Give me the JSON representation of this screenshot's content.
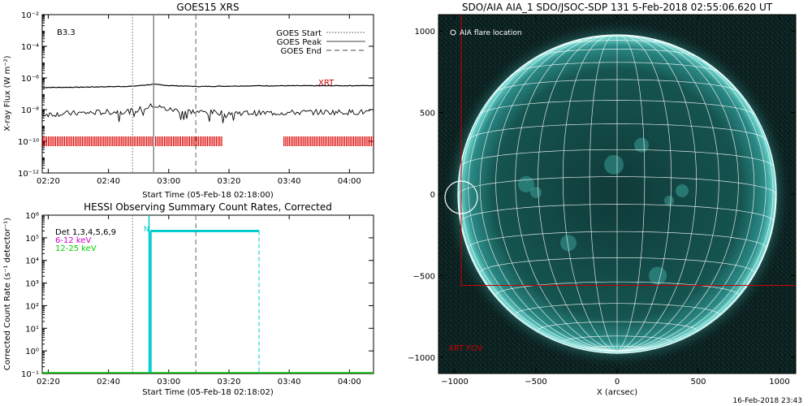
{
  "chart_data": [
    {
      "type": "line",
      "title": "GOES15 XRS",
      "xlabel": "Start Time (05-Feb-18 02:18:00)",
      "ylabel": "X-ray Flux (W m⁻²)",
      "yscale": "log",
      "ylim": [
        1e-12,
        0.01
      ],
      "x_ticks": [
        "02:20",
        "02:40",
        "03:00",
        "03:20",
        "03:40",
        "04:00"
      ],
      "y_ticks": [
        "10⁻¹²",
        "10⁻¹⁰",
        "10⁻⁸",
        "10⁻⁶",
        "10⁻⁴",
        "10⁻²"
      ],
      "annotation": "B3.3",
      "legend": [
        "GOES Start",
        "GOES Peak",
        "GOES End"
      ],
      "legend_position": "top-right",
      "xrt_label": "XRT",
      "markers": {
        "start": "02:48",
        "peak": "02:55",
        "end": "03:09"
      },
      "series": [
        {
          "name": "",
          "x": [
            "02:18",
            "02:30",
            "02:40",
            "02:48",
            "02:55",
            "03:00",
            "03:10",
            "03:30",
            "03:50",
            "04:08"
          ],
          "values": [
            2.5e-07,
            2.6e-07,
            2.8e-07,
            3e-07,
            4e-07,
            3.3e-07,
            2.9e-07,
            3.2e-07,
            3.2e-07,
            3.3e-07
          ]
        },
        {
          "name": "",
          "x": [
            "02:18",
            "02:30",
            "02:40",
            "02:48",
            "02:55",
            "03:00",
            "03:10",
            "03:30",
            "03:50",
            "04:08"
          ],
          "values": [
            5e-09,
            6e-09,
            7e-09,
            8e-09,
            1.8e-08,
            1e-08,
            7e-09,
            6e-09,
            7e-09,
            7e-09
          ]
        }
      ],
      "xrt_coverage": [
        [
          "02:18",
          "03:18"
        ],
        [
          "03:38",
          "04:08"
        ]
      ]
    },
    {
      "type": "line",
      "title": "HESSI Observing Summary Count Rates, Corrected",
      "xlabel": "Start Time (05-Feb-18 02:18:02)",
      "ylabel": "Corrected Count Rate (s⁻¹ detector⁻¹)",
      "yscale": "log",
      "ylim": [
        0.1,
        1000000.0
      ],
      "x_ticks": [
        "02:20",
        "02:40",
        "03:00",
        "03:20",
        "03:40",
        "04:00"
      ],
      "y_ticks": [
        "10⁻¹",
        "10⁰",
        "10¹",
        "10²",
        "10³",
        "10⁴",
        "10⁵",
        "10⁶"
      ],
      "legend": [
        "Det 1,3,4,5,6,9",
        "6-12 keV",
        "12-25 keV"
      ],
      "legend_colors": [
        "#000000",
        "#cc00cc",
        "#00cc00"
      ],
      "night_label": "N",
      "markers": {
        "start": "02:48",
        "end": "03:09"
      },
      "saa_level": 200000.0,
      "saa_interval": [
        "02:54",
        "03:30"
      ]
    },
    {
      "type": "scatter",
      "title": "SDO/AIA AIA_1 SDO/JSOC-SDP 131  5-Feb-2018 02:55:06.620 UT",
      "xlabel": "X (arcsec)",
      "ylabel": "",
      "xlim": [
        -1100,
        1100
      ],
      "ylim": [
        -1100,
        1100
      ],
      "x_ticks": [
        "−1000",
        "−500",
        "0",
        "500",
        "1000"
      ],
      "y_ticks": [
        "−1000",
        "−500",
        "0",
        "500",
        "1000"
      ],
      "grid": true,
      "legend": [
        "AIA flare location"
      ],
      "legend_position": "top-left",
      "xrt_fov_label": "XRT FOV",
      "solar_radius_arcsec": 975,
      "flare_location": [
        -960,
        -20
      ],
      "xrt_fov": [
        -960,
        -560,
        1100,
        1100
      ]
    }
  ],
  "footer": {
    "timestamp": "16-Feb-2018 23:43"
  }
}
